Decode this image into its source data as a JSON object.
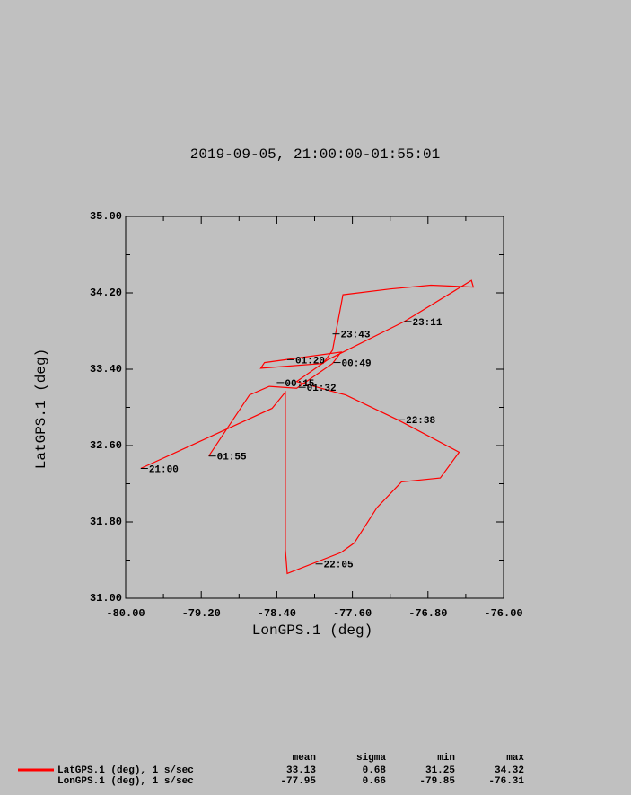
{
  "chart_data": {
    "type": "line",
    "title": "2019-09-05, 21:00:00-01:55:01",
    "xlabel": "LonGPS.1 (deg)",
    "ylabel": "LatGPS.1 (deg)",
    "xlim": [
      -80,
      -76
    ],
    "ylim": [
      31,
      35
    ],
    "xticks": [
      {
        "value": -80,
        "label": "-80.00"
      },
      {
        "value": -79.2,
        "label": "-79.20"
      },
      {
        "value": -78.4,
        "label": "-78.40"
      },
      {
        "value": -77.6,
        "label": "-77.60"
      },
      {
        "value": -76.8,
        "label": "-76.80"
      },
      {
        "value": -76,
        "label": "-76.00"
      }
    ],
    "yticks": [
      {
        "value": 31,
        "label": "31.00"
      },
      {
        "value": 31.8,
        "label": "31.80"
      },
      {
        "value": 32.6,
        "label": "32.60"
      },
      {
        "value": 33.4,
        "label": "33.40"
      },
      {
        "value": 34.2,
        "label": "34.20"
      },
      {
        "value": 35,
        "label": "35.00"
      }
    ],
    "xticks_minor": [
      -79.6,
      -78.8,
      -78,
      -77.2,
      -76.4
    ],
    "yticks_minor": [
      31.4,
      32.2,
      33,
      33.8,
      34.6
    ],
    "series": [
      {
        "name": "LatGPS.1 (deg), 1 s/sec",
        "color": "#ff0000",
        "x": [
          -79.84,
          -78.45,
          -78.31,
          -78.31,
          -78.29,
          -77.72,
          -77.58,
          -77.34,
          -77.08,
          -76.67,
          -76.47,
          -77.12,
          -77.67,
          -78.19,
          -77.86,
          -77.05,
          -76.34,
          -76.32,
          -76.77,
          -77.2,
          -77.7,
          -77.81,
          -77.91,
          -78.57,
          -78.53,
          -77.72,
          -77.81,
          -78.19,
          -78.48,
          -78.69,
          -79.12
        ],
        "values": [
          32.36,
          32.99,
          33.16,
          31.51,
          31.26,
          31.48,
          31.58,
          31.95,
          32.22,
          32.26,
          32.53,
          32.87,
          33.13,
          33.27,
          33.5,
          33.9,
          34.33,
          34.26,
          34.28,
          34.24,
          34.18,
          33.6,
          33.46,
          33.41,
          33.47,
          33.58,
          33.46,
          33.2,
          33.22,
          33.13,
          32.49
        ]
      }
    ],
    "annotations": [
      {
        "text": "21:00",
        "x": -79.84,
        "y": 32.36
      },
      {
        "text": "22:05",
        "x": -77.99,
        "y": 31.36
      },
      {
        "text": "22:38",
        "x": -77.12,
        "y": 32.87
      },
      {
        "text": "23:11",
        "x": -77.05,
        "y": 33.9
      },
      {
        "text": "23:43",
        "x": -77.81,
        "y": 33.77
      },
      {
        "text": "00:15",
        "x": -78.4,
        "y": 33.26
      },
      {
        "text": "00:49",
        "x": -77.8,
        "y": 33.47
      },
      {
        "text": "01:20",
        "x": -78.29,
        "y": 33.5
      },
      {
        "text": "01:32",
        "x": -78.17,
        "y": 33.21
      },
      {
        "text": "01:55",
        "x": -79.12,
        "y": 32.49
      }
    ],
    "stats": {
      "columns": [
        "mean",
        "sigma",
        "min",
        "max"
      ],
      "rows": [
        {
          "values": [
            33.13,
            0.68,
            31.25,
            34.32
          ]
        },
        {
          "label": "LonGPS.1 (deg), 1 s/sec",
          "values": [
            -77.95,
            0.66,
            -79.85,
            -76.31
          ]
        }
      ]
    }
  }
}
